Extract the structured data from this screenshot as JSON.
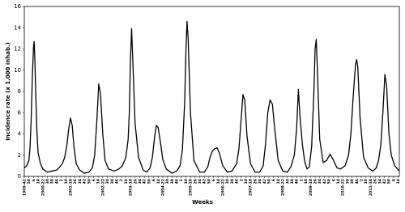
{
  "chart_data": {
    "type": "line",
    "y_label": "Incidence rate (x 1,000 inhab.)",
    "x_label": "Weeks",
    "color": "#000000",
    "grid": false,
    "xlim": [
      0,
      650
    ],
    "ylim": [
      0,
      16
    ],
    "yticks": [
      0,
      2,
      4,
      6,
      8,
      10,
      12,
      14,
      16
    ],
    "xticks": [
      {
        "value": 0,
        "label": "1999-42"
      },
      {
        "value": 8,
        "label": "50"
      },
      {
        "value": 16,
        "label": "6"
      },
      {
        "value": 24,
        "label": "14"
      },
      {
        "value": 32,
        "label": "2000-22"
      },
      {
        "value": 40,
        "label": "30"
      },
      {
        "value": 48,
        "label": "38"
      },
      {
        "value": 56,
        "label": "46"
      },
      {
        "value": 64,
        "label": "2"
      },
      {
        "value": 72,
        "label": "10"
      },
      {
        "value": 80,
        "label": "2001-18"
      },
      {
        "value": 88,
        "label": "26"
      },
      {
        "value": 96,
        "label": "34"
      },
      {
        "value": 104,
        "label": "42"
      },
      {
        "value": 112,
        "label": "50"
      },
      {
        "value": 120,
        "label": "6"
      },
      {
        "value": 128,
        "label": "14"
      },
      {
        "value": 136,
        "label": "2002-22"
      },
      {
        "value": 144,
        "label": "30"
      },
      {
        "value": 152,
        "label": "38"
      },
      {
        "value": 160,
        "label": "46"
      },
      {
        "value": 168,
        "label": "2"
      },
      {
        "value": 176,
        "label": "10"
      },
      {
        "value": 184,
        "label": "2003-18"
      },
      {
        "value": 192,
        "label": "26"
      },
      {
        "value": 200,
        "label": "34"
      },
      {
        "value": 208,
        "label": "42"
      },
      {
        "value": 216,
        "label": "50"
      },
      {
        "value": 224,
        "label": "6"
      },
      {
        "value": 232,
        "label": "14"
      },
      {
        "value": 240,
        "label": "2004-22"
      },
      {
        "value": 248,
        "label": "30"
      },
      {
        "value": 256,
        "label": "38"
      },
      {
        "value": 264,
        "label": "46"
      },
      {
        "value": 272,
        "label": "2"
      },
      {
        "value": 280,
        "label": "10"
      },
      {
        "value": 288,
        "label": "2005-18"
      },
      {
        "value": 296,
        "label": "26"
      },
      {
        "value": 304,
        "label": "34"
      },
      {
        "value": 312,
        "label": "42"
      },
      {
        "value": 320,
        "label": "50"
      },
      {
        "value": 328,
        "label": "6"
      },
      {
        "value": 336,
        "label": "14"
      },
      {
        "value": 344,
        "label": "2006-22"
      },
      {
        "value": 352,
        "label": "30"
      },
      {
        "value": 360,
        "label": "38"
      },
      {
        "value": 368,
        "label": "46"
      },
      {
        "value": 376,
        "label": "2"
      },
      {
        "value": 384,
        "label": "10"
      },
      {
        "value": 392,
        "label": "2007-18"
      },
      {
        "value": 400,
        "label": "26"
      },
      {
        "value": 408,
        "label": "34"
      },
      {
        "value": 416,
        "label": "42"
      },
      {
        "value": 424,
        "label": "50"
      },
      {
        "value": 432,
        "label": "6"
      },
      {
        "value": 440,
        "label": "14"
      },
      {
        "value": 448,
        "label": "2008-22"
      },
      {
        "value": 456,
        "label": "30"
      },
      {
        "value": 464,
        "label": "38"
      },
      {
        "value": 472,
        "label": "46"
      },
      {
        "value": 480,
        "label": "2"
      },
      {
        "value": 488,
        "label": "10"
      },
      {
        "value": 496,
        "label": "2009-18"
      },
      {
        "value": 504,
        "label": "26"
      },
      {
        "value": 512,
        "label": "34"
      },
      {
        "value": 520,
        "label": "42"
      },
      {
        "value": 528,
        "label": "50"
      },
      {
        "value": 536,
        "label": "6"
      },
      {
        "value": 544,
        "label": "14"
      },
      {
        "value": 552,
        "label": "2010-22"
      },
      {
        "value": 560,
        "label": "30"
      },
      {
        "value": 568,
        "label": "38"
      },
      {
        "value": 576,
        "label": "46"
      },
      {
        "value": 584,
        "label": "2"
      },
      {
        "value": 592,
        "label": "10"
      },
      {
        "value": 600,
        "label": "2011-18"
      },
      {
        "value": 608,
        "label": "26"
      },
      {
        "value": 616,
        "label": "34"
      },
      {
        "value": 624,
        "label": "42"
      },
      {
        "value": 632,
        "label": "50"
      },
      {
        "value": 640,
        "label": "6"
      },
      {
        "value": 648,
        "label": "14"
      }
    ],
    "x": [
      0,
      4,
      8,
      10,
      12,
      14,
      16,
      17,
      18,
      20,
      22,
      24,
      28,
      32,
      40,
      48,
      56,
      60,
      66,
      70,
      74,
      77,
      80,
      83,
      86,
      90,
      96,
      104,
      112,
      118,
      122,
      126,
      129,
      132,
      136,
      140,
      146,
      156,
      164,
      170,
      176,
      180,
      182,
      184,
      186,
      188,
      192,
      198,
      206,
      212,
      218,
      222,
      226,
      229,
      232,
      236,
      240,
      246,
      256,
      264,
      270,
      274,
      278,
      280,
      282,
      284,
      288,
      294,
      304,
      312,
      318,
      322,
      326,
      330,
      334,
      338,
      344,
      352,
      360,
      368,
      372,
      376,
      379,
      382,
      386,
      392,
      400,
      408,
      414,
      418,
      422,
      426,
      430,
      434,
      440,
      448,
      456,
      462,
      468,
      472,
      475,
      478,
      482,
      486,
      490,
      494,
      498,
      502,
      504,
      506,
      508,
      512,
      518,
      524,
      530,
      536,
      542,
      548,
      556,
      562,
      566,
      570,
      574,
      576,
      578,
      582,
      588,
      596,
      604,
      610,
      614,
      618,
      622,
      625,
      628,
      632,
      636,
      642,
      650
    ],
    "values": [
      0.8,
      1.0,
      1.5,
      2.8,
      5.5,
      9.5,
      12.2,
      12.7,
      11.5,
      7.5,
      4.0,
      2.2,
      1.2,
      0.7,
      0.4,
      0.5,
      0.6,
      0.8,
      1.2,
      1.8,
      3.0,
      4.5,
      5.5,
      4.8,
      2.8,
      1.2,
      0.6,
      0.3,
      0.4,
      0.8,
      2.0,
      5.5,
      8.7,
      7.8,
      4.0,
      1.5,
      0.7,
      0.5,
      0.7,
      1.0,
      1.8,
      3.5,
      6.0,
      11.0,
      13.9,
      11.0,
      5.0,
      1.8,
      0.6,
      0.4,
      0.8,
      1.8,
      3.8,
      4.8,
      4.6,
      3.2,
      1.6,
      0.7,
      0.3,
      0.5,
      1.0,
      2.5,
      7.0,
      11.5,
      14.6,
      13.0,
      6.0,
      1.5,
      0.4,
      0.4,
      0.9,
      1.8,
      2.4,
      2.6,
      2.7,
      2.2,
      1.0,
      0.4,
      0.5,
      1.2,
      2.6,
      5.5,
      7.7,
      7.2,
      3.8,
      1.2,
      0.4,
      0.4,
      1.0,
      3.0,
      6.0,
      7.2,
      6.8,
      4.5,
      1.5,
      0.5,
      0.4,
      0.9,
      2.0,
      4.5,
      8.2,
      5.5,
      3.0,
      1.4,
      0.7,
      0.9,
      2.8,
      8.0,
      12.0,
      12.9,
      10.0,
      3.5,
      1.3,
      1.5,
      2.1,
      1.5,
      0.8,
      0.7,
      1.0,
      2.0,
      4.0,
      7.5,
      10.5,
      11.0,
      10.3,
      5.5,
      1.8,
      0.8,
      0.5,
      0.8,
      1.5,
      3.0,
      6.5,
      9.6,
      8.5,
      4.0,
      2.0,
      1.0,
      0.5
    ]
  }
}
